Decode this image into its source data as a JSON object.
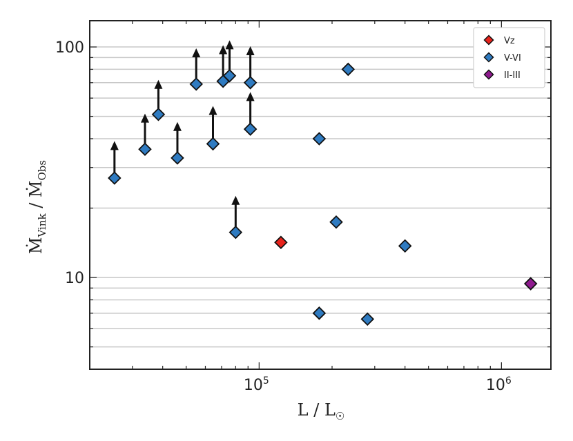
{
  "chart_data": {
    "type": "scatter",
    "xscale": "log",
    "yscale": "log",
    "xlim": [
      20000,
      1600000
    ],
    "ylim": [
      4.0,
      130
    ],
    "xlabel": "L / L☉",
    "ylabel": "Ṁ_Vink / Ṁ_Obs",
    "x_ticks": [
      {
        "base": "10",
        "exp": "5",
        "value": 100000
      },
      {
        "base": "10",
        "exp": "6",
        "value": 1000000
      }
    ],
    "y_ticks": [
      {
        "label": "10",
        "value": 10
      },
      {
        "label": "100",
        "value": 100
      }
    ],
    "gridlines_y": [
      5,
      6,
      7,
      8,
      9,
      10,
      20,
      30,
      40,
      50,
      60,
      70,
      80,
      90,
      100
    ],
    "legend": {
      "location": "top-right"
    },
    "series": [
      {
        "name": "Vz",
        "color": "#e8231c",
        "points": [
          {
            "x": 123000,
            "y": 14.2,
            "lower_limit": false
          }
        ]
      },
      {
        "name": "V-VI",
        "color": "#2f7bc1",
        "points": [
          {
            "x": 25300,
            "y": 27,
            "lower_limit": true,
            "arrow_to": 38
          },
          {
            "x": 33800,
            "y": 36,
            "lower_limit": true,
            "arrow_to": 50
          },
          {
            "x": 38400,
            "y": 51,
            "lower_limit": true,
            "arrow_to": 70
          },
          {
            "x": 46000,
            "y": 33,
            "lower_limit": true,
            "arrow_to": 46
          },
          {
            "x": 55000,
            "y": 69,
            "lower_limit": true,
            "arrow_to": 96
          },
          {
            "x": 64500,
            "y": 38,
            "lower_limit": true,
            "arrow_to": 54
          },
          {
            "x": 71000,
            "y": 71,
            "lower_limit": true,
            "arrow_to": 99
          },
          {
            "x": 75500,
            "y": 75,
            "lower_limit": true,
            "arrow_to": 104
          },
          {
            "x": 80000,
            "y": 15.7,
            "lower_limit": true,
            "arrow_to": 22
          },
          {
            "x": 92000,
            "y": 44,
            "lower_limit": true,
            "arrow_to": 62
          },
          {
            "x": 92000,
            "y": 70,
            "lower_limit": true,
            "arrow_to": 98
          },
          {
            "x": 177000,
            "y": 40,
            "lower_limit": false
          },
          {
            "x": 233000,
            "y": 80,
            "lower_limit": false
          },
          {
            "x": 208000,
            "y": 17.4,
            "lower_limit": false
          },
          {
            "x": 400000,
            "y": 13.7,
            "lower_limit": false
          },
          {
            "x": 177000,
            "y": 7.0,
            "lower_limit": false
          },
          {
            "x": 280000,
            "y": 6.6,
            "lower_limit": false
          }
        ]
      },
      {
        "name": "II-III",
        "color": "#8e1a8e",
        "points": [
          {
            "x": 1320000,
            "y": 9.4,
            "lower_limit": false
          }
        ]
      }
    ]
  }
}
